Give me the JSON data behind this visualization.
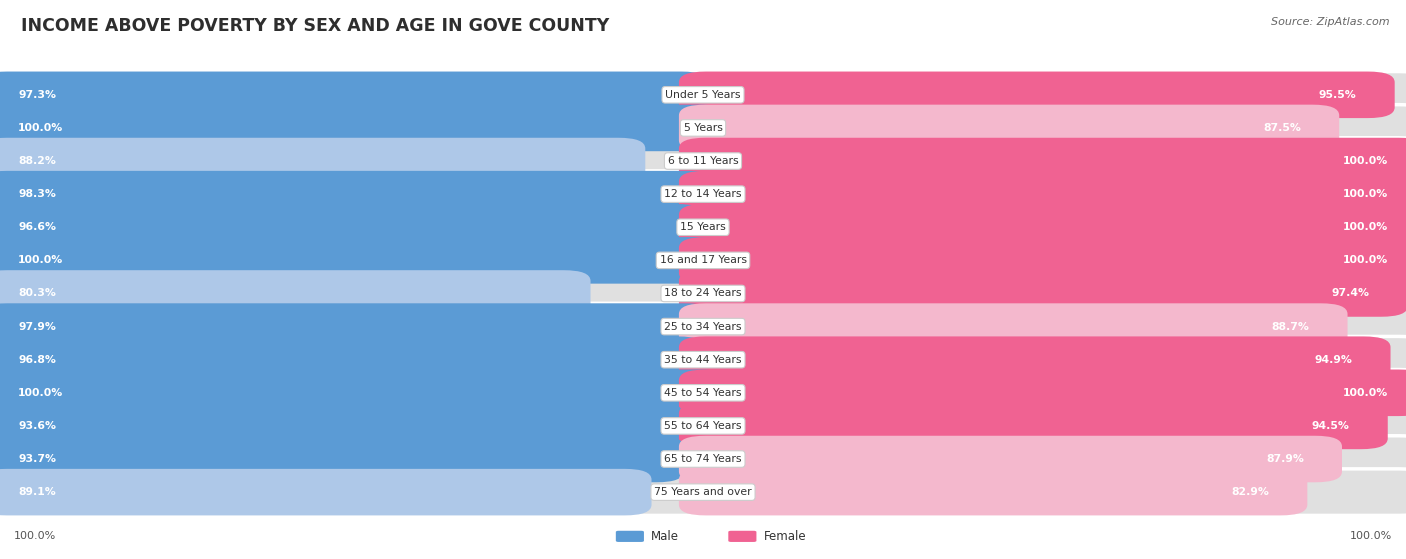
{
  "title": "INCOME ABOVE POVERTY BY SEX AND AGE IN GOVE COUNTY",
  "source": "Source: ZipAtlas.com",
  "categories": [
    "Under 5 Years",
    "5 Years",
    "6 to 11 Years",
    "12 to 14 Years",
    "15 Years",
    "16 and 17 Years",
    "18 to 24 Years",
    "25 to 34 Years",
    "35 to 44 Years",
    "45 to 54 Years",
    "55 to 64 Years",
    "65 to 74 Years",
    "75 Years and over"
  ],
  "male_values": [
    97.3,
    100.0,
    88.2,
    98.3,
    96.6,
    100.0,
    80.3,
    97.9,
    96.8,
    100.0,
    93.6,
    93.7,
    89.1
  ],
  "female_values": [
    95.5,
    87.5,
    100.0,
    100.0,
    100.0,
    100.0,
    97.4,
    88.7,
    94.9,
    100.0,
    94.5,
    87.9,
    82.9
  ],
  "male_color_dark": "#5b9bd5",
  "male_color_light": "#aec8e8",
  "female_color_dark": "#f06292",
  "female_color_light": "#f4b8cd",
  "bg_color": "#ffffff",
  "row_bg_color": "#e8e8e8",
  "row_alt_bg": "#f0f0f0",
  "legend_male": "Male",
  "legend_female": "Female",
  "footer_value": "100.0%",
  "light_threshold": 90.0
}
